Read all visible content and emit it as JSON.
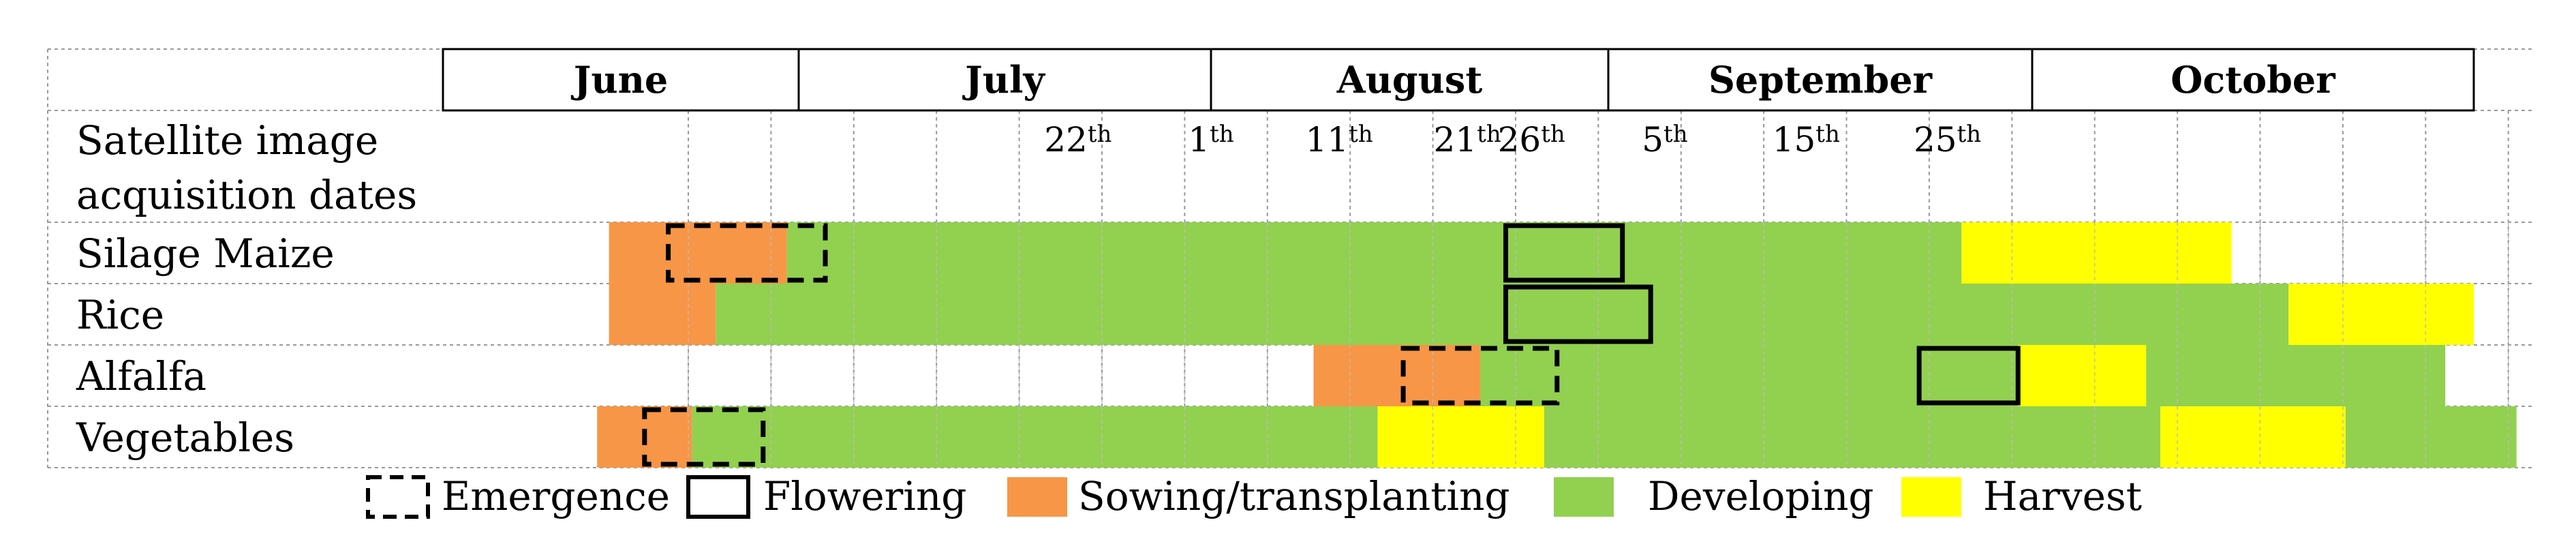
{
  "chart_data": {
    "type": "gantt",
    "title": "",
    "months": [
      "June",
      "July",
      "August",
      "September",
      "October"
    ],
    "row_header": "Satellite image acquisition dates",
    "acquisition_dates": [
      {
        "num": "22",
        "suffix": "th",
        "date": "07-22"
      },
      {
        "num": "1",
        "suffix": "th",
        "date": "08-01"
      },
      {
        "num": "11",
        "suffix": "th",
        "date": "08-11"
      },
      {
        "num": "21",
        "suffix": "th",
        "date": "08-21"
      },
      {
        "num": "26",
        "suffix": "th",
        "date": "08-26"
      },
      {
        "num": "5",
        "suffix": "th",
        "date": "09-05"
      },
      {
        "num": "15",
        "suffix": "th",
        "date": "09-15"
      },
      {
        "num": "25",
        "suffix": "th",
        "date": "09-25"
      }
    ],
    "crops": [
      {
        "name": "Silage Maize",
        "phases": [
          {
            "phase": "sowing",
            "start": "06-15",
            "end": "06-30"
          },
          {
            "phase": "developing",
            "start": "06-30",
            "end": "09-26"
          },
          {
            "phase": "harvest",
            "start": "09-26",
            "end": "10-15"
          }
        ],
        "emergence": {
          "start": "06-20",
          "end": "07-03"
        },
        "flowering": {
          "start": "08-24",
          "end": "09-02"
        }
      },
      {
        "name": "Rice",
        "phases": [
          {
            "phase": "sowing",
            "start": "06-15",
            "end": "06-24"
          },
          {
            "phase": "developing",
            "start": "06-24",
            "end": "10-19"
          },
          {
            "phase": "harvest",
            "start": "10-19",
            "end": "11-01"
          }
        ],
        "emergence": null,
        "flowering": {
          "start": "08-24",
          "end": "09-04"
        }
      },
      {
        "name": "Alfalfa",
        "phases": [
          {
            "phase": "sowing",
            "start": "08-09",
            "end": "08-22"
          },
          {
            "phase": "developing",
            "start": "08-22",
            "end": "09-30"
          },
          {
            "phase": "harvest",
            "start": "09-30",
            "end": "10-09"
          },
          {
            "phase": "developing",
            "start": "10-09",
            "end": "10-30"
          }
        ],
        "emergence": {
          "start": "08-16",
          "end": "08-28"
        },
        "flowering": {
          "start": "09-23",
          "end": "09-30"
        }
      },
      {
        "name": "Vegetables",
        "phases": [
          {
            "phase": "sowing",
            "start": "06-14",
            "end": "06-22"
          },
          {
            "phase": "developing",
            "start": "06-22",
            "end": "08-14"
          },
          {
            "phase": "harvest",
            "start": "08-14",
            "end": "08-27"
          },
          {
            "phase": "developing",
            "start": "08-27",
            "end": "10-10"
          },
          {
            "phase": "harvest",
            "start": "10-10",
            "end": "10-23"
          },
          {
            "phase": "developing",
            "start": "10-23",
            "end": "11-04"
          }
        ],
        "emergence": {
          "start": "06-18",
          "end": "06-28"
        },
        "flowering": null
      }
    ],
    "legend": [
      {
        "key": "emergence",
        "label": "Emergence"
      },
      {
        "key": "flowering",
        "label": "Flowering"
      },
      {
        "key": "sowing",
        "label": "Sowing/transplanting"
      },
      {
        "key": "developing",
        "label": "Developing"
      },
      {
        "key": "harvest",
        "label": "Harvest"
      }
    ],
    "colors": {
      "sowing": "#f79646",
      "developing": "#92d050",
      "harvest": "#ffff00",
      "grid": "#999999",
      "outline": "#000000"
    }
  }
}
